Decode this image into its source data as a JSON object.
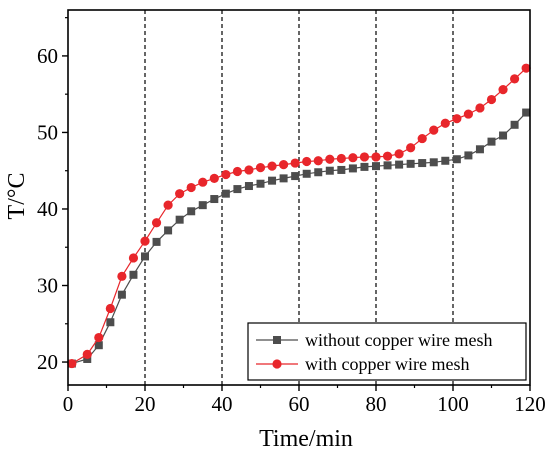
{
  "chart_data": {
    "type": "line",
    "title": "",
    "xlabel": "Time/min",
    "ylabel": "T/°C",
    "xlim": [
      0,
      120
    ],
    "ylim": [
      17,
      66
    ],
    "xticks": [
      0,
      20,
      40,
      60,
      80,
      100,
      120
    ],
    "yticks": [
      20,
      30,
      40,
      50,
      60
    ],
    "x_tick_labels": [
      "0",
      "20",
      "40",
      "60",
      "80",
      "100",
      "120"
    ],
    "y_tick_labels": [
      "20",
      "30",
      "40",
      "50",
      "60"
    ],
    "vertical_guides": [
      20,
      40,
      60,
      80,
      100
    ],
    "grid": false,
    "legend_position": "bottom-right",
    "series": [
      {
        "name": "without copper wire mesh",
        "color": "#4d4d4d",
        "marker": "square",
        "x": [
          1,
          5,
          8,
          11,
          14,
          17,
          20,
          23,
          26,
          29,
          32,
          35,
          38,
          41,
          44,
          47,
          50,
          53,
          56,
          59,
          62,
          65,
          68,
          71,
          74,
          77,
          80,
          83,
          86,
          89,
          92,
          95,
          98,
          101,
          104,
          107,
          110,
          113,
          116,
          119
        ],
        "values": [
          19.8,
          20.4,
          22.2,
          25.2,
          28.8,
          31.4,
          33.8,
          35.7,
          37.2,
          38.6,
          39.7,
          40.5,
          41.3,
          42.0,
          42.6,
          43.0,
          43.3,
          43.7,
          44.0,
          44.3,
          44.6,
          44.8,
          45.0,
          45.1,
          45.3,
          45.5,
          45.6,
          45.7,
          45.8,
          45.9,
          46.0,
          46.1,
          46.3,
          46.5,
          47.0,
          47.8,
          48.8,
          49.6,
          51.0,
          52.6
        ]
      },
      {
        "name": "with copper wire mesh",
        "color": "#e8262b",
        "marker": "circle",
        "x": [
          1,
          5,
          8,
          11,
          14,
          17,
          20,
          23,
          26,
          29,
          32,
          35,
          38,
          41,
          44,
          47,
          50,
          53,
          56,
          59,
          62,
          65,
          68,
          71,
          74,
          77,
          80,
          83,
          86,
          89,
          92,
          95,
          98,
          101,
          104,
          107,
          110,
          113,
          116,
          119
        ],
        "values": [
          19.8,
          21.0,
          23.2,
          27.0,
          31.2,
          33.6,
          35.8,
          38.2,
          40.5,
          42.0,
          42.8,
          43.5,
          44.0,
          44.5,
          44.9,
          45.1,
          45.4,
          45.6,
          45.8,
          46.0,
          46.2,
          46.3,
          46.5,
          46.6,
          46.7,
          46.8,
          46.8,
          46.9,
          47.2,
          48.0,
          49.2,
          50.3,
          51.2,
          51.8,
          52.4,
          53.2,
          54.3,
          55.6,
          57.0,
          58.4
        ]
      }
    ]
  }
}
